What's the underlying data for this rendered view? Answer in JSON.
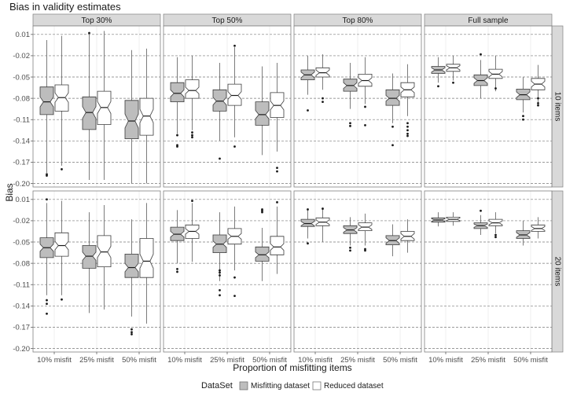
{
  "chart_data": {
    "type": "boxplot",
    "title": "Bias in validity estimates",
    "xlabel": "Proportion of misfitting items",
    "ylabel": "Bias",
    "categories": [
      "10% misfit",
      "25% misfit",
      "50% misfit"
    ],
    "columns": [
      "Top 30%",
      "Top 50%",
      "Top 80%",
      "Full sample"
    ],
    "rows": [
      "10 items",
      "20 items"
    ],
    "yticks": [
      "0.01",
      "-0.02",
      "-0.05",
      "-0.08",
      "-0.11",
      "-0.14",
      "-0.17",
      "-0.20"
    ],
    "yticks_values": [
      0.01,
      -0.02,
      -0.05,
      -0.08,
      -0.11,
      -0.14,
      -0.17,
      -0.2
    ],
    "ylim": [
      -0.205,
      0.022
    ],
    "grid": true,
    "legend": {
      "title": "DataSet",
      "position": "bottom",
      "entries": [
        {
          "label": "Misfitting dataset",
          "color": "#bdbdbd"
        },
        {
          "label": "Reduced dataset",
          "color": "#ffffff"
        }
      ]
    },
    "colors": {
      "misfitting": "#bdbdbd",
      "reduced": "#ffffff",
      "strip": "#d9d9d9",
      "border": "#7f7f7f"
    },
    "series": [
      {
        "name": "Misfitting dataset",
        "row": 0,
        "col": 0,
        "cat": 0,
        "wlo": -0.185,
        "q1": -0.103,
        "med": -0.085,
        "q3": -0.064,
        "whi": 0.002,
        "outliers": [
          -0.187,
          -0.189
        ]
      },
      {
        "name": "Reduced dataset",
        "row": 0,
        "col": 0,
        "cat": 0,
        "wlo": -0.175,
        "q1": -0.098,
        "med": -0.079,
        "q3": -0.061,
        "whi": 0.008,
        "outliers": [
          -0.18
        ]
      },
      {
        "name": "Misfitting dataset",
        "row": 0,
        "col": 0,
        "cat": 1,
        "wlo": -0.195,
        "q1": -0.124,
        "med": -0.1,
        "q3": -0.078,
        "whi": 0.01,
        "outliers": [
          0.012
        ]
      },
      {
        "name": "Reduced dataset",
        "row": 0,
        "col": 0,
        "cat": 1,
        "wlo": -0.195,
        "q1": -0.117,
        "med": -0.093,
        "q3": -0.07,
        "whi": 0.015,
        "outliers": []
      },
      {
        "name": "Misfitting dataset",
        "row": 0,
        "col": 0,
        "cat": 2,
        "wlo": -0.2,
        "q1": -0.137,
        "med": -0.112,
        "q3": -0.083,
        "whi": -0.012,
        "outliers": []
      },
      {
        "name": "Reduced dataset",
        "row": 0,
        "col": 0,
        "cat": 2,
        "wlo": -0.2,
        "q1": -0.132,
        "med": -0.105,
        "q3": -0.08,
        "whi": -0.01,
        "outliers": []
      },
      {
        "name": "Misfitting dataset",
        "row": 0,
        "col": 1,
        "cat": 0,
        "wlo": -0.13,
        "q1": -0.085,
        "med": -0.073,
        "q3": -0.058,
        "whi": -0.022,
        "outliers": [
          -0.132,
          -0.146,
          -0.148
        ]
      },
      {
        "name": "Reduced dataset",
        "row": 0,
        "col": 1,
        "cat": 0,
        "wlo": -0.125,
        "q1": -0.08,
        "med": -0.069,
        "q3": -0.054,
        "whi": -0.02,
        "outliers": [
          -0.128,
          -0.132,
          -0.135
        ]
      },
      {
        "name": "Misfitting dataset",
        "row": 0,
        "col": 1,
        "cat": 1,
        "wlo": -0.14,
        "q1": -0.098,
        "med": -0.084,
        "q3": -0.068,
        "whi": -0.03,
        "outliers": [
          -0.165
        ]
      },
      {
        "name": "Reduced dataset",
        "row": 0,
        "col": 1,
        "cat": 1,
        "wlo": -0.135,
        "q1": -0.09,
        "med": -0.076,
        "q3": -0.06,
        "whi": -0.008,
        "outliers": [
          -0.006,
          -0.148
        ]
      },
      {
        "name": "Misfitting dataset",
        "row": 0,
        "col": 1,
        "cat": 2,
        "wlo": -0.16,
        "q1": -0.118,
        "med": -0.103,
        "q3": -0.085,
        "whi": -0.035,
        "outliers": []
      },
      {
        "name": "Reduced dataset",
        "row": 0,
        "col": 1,
        "cat": 2,
        "wlo": -0.155,
        "q1": -0.107,
        "med": -0.09,
        "q3": -0.072,
        "whi": -0.03,
        "outliers": [
          -0.178,
          -0.183
        ]
      },
      {
        "name": "Misfitting dataset",
        "row": 0,
        "col": 2,
        "cat": 0,
        "wlo": -0.075,
        "q1": -0.054,
        "med": -0.047,
        "q3": -0.04,
        "whi": -0.02,
        "outliers": [
          -0.097
        ]
      },
      {
        "name": "Reduced dataset",
        "row": 0,
        "col": 2,
        "cat": 0,
        "wlo": -0.068,
        "q1": -0.05,
        "med": -0.044,
        "q3": -0.037,
        "whi": -0.018,
        "outliers": [
          -0.08,
          -0.085
        ]
      },
      {
        "name": "Misfitting dataset",
        "row": 0,
        "col": 2,
        "cat": 1,
        "wlo": -0.095,
        "q1": -0.07,
        "med": -0.062,
        "q3": -0.053,
        "whi": -0.03,
        "outliers": [
          -0.115,
          -0.119
        ]
      },
      {
        "name": "Reduced dataset",
        "row": 0,
        "col": 2,
        "cat": 1,
        "wlo": -0.088,
        "q1": -0.063,
        "med": -0.055,
        "q3": -0.046,
        "whi": -0.022,
        "outliers": [
          -0.092,
          -0.118
        ]
      },
      {
        "name": "Misfitting dataset",
        "row": 0,
        "col": 2,
        "cat": 2,
        "wlo": -0.115,
        "q1": -0.09,
        "med": -0.08,
        "q3": -0.068,
        "whi": -0.045,
        "outliers": [
          -0.146,
          -0.12
        ]
      },
      {
        "name": "Reduced dataset",
        "row": 0,
        "col": 2,
        "cat": 2,
        "wlo": -0.105,
        "q1": -0.078,
        "med": -0.068,
        "q3": -0.058,
        "whi": -0.032,
        "outliers": [
          -0.115,
          -0.12,
          -0.125,
          -0.13,
          -0.133
        ]
      },
      {
        "name": "Misfitting dataset",
        "row": 0,
        "col": 3,
        "cat": 0,
        "wlo": -0.058,
        "q1": -0.045,
        "med": -0.04,
        "q3": -0.035,
        "whi": -0.022,
        "outliers": [
          -0.063
        ]
      },
      {
        "name": "Reduced dataset",
        "row": 0,
        "col": 3,
        "cat": 0,
        "wlo": -0.055,
        "q1": -0.042,
        "med": -0.037,
        "q3": -0.032,
        "whi": -0.02,
        "outliers": [
          -0.058
        ]
      },
      {
        "name": "Misfitting dataset",
        "row": 0,
        "col": 3,
        "cat": 1,
        "wlo": -0.08,
        "q1": -0.062,
        "med": -0.055,
        "q3": -0.047,
        "whi": -0.026,
        "outliers": [
          -0.018
        ]
      },
      {
        "name": "Reduced dataset",
        "row": 0,
        "col": 3,
        "cat": 1,
        "wlo": -0.07,
        "q1": -0.052,
        "med": -0.046,
        "q3": -0.039,
        "whi": -0.02,
        "outliers": [
          -0.066
        ]
      },
      {
        "name": "Misfitting dataset",
        "row": 0,
        "col": 3,
        "cat": 2,
        "wlo": -0.1,
        "q1": -0.082,
        "med": -0.075,
        "q3": -0.067,
        "whi": -0.05,
        "outliers": [
          -0.105,
          -0.11
        ]
      },
      {
        "name": "Reduced dataset",
        "row": 0,
        "col": 3,
        "cat": 2,
        "wlo": -0.088,
        "q1": -0.068,
        "med": -0.06,
        "q3": -0.052,
        "whi": -0.033,
        "outliers": [
          -0.08,
          -0.087,
          -0.09
        ]
      },
      {
        "name": "Misfitting dataset",
        "row": 1,
        "col": 0,
        "cat": 0,
        "wlo": -0.125,
        "q1": -0.072,
        "med": -0.058,
        "q3": -0.044,
        "whi": 0.005,
        "outliers": [
          0.01,
          -0.132,
          -0.137,
          -0.151
        ]
      },
      {
        "name": "Reduced dataset",
        "row": 1,
        "col": 0,
        "cat": 0,
        "wlo": -0.125,
        "q1": -0.07,
        "med": -0.055,
        "q3": -0.037,
        "whi": 0.008,
        "outliers": [
          -0.131
        ]
      },
      {
        "name": "Misfitting dataset",
        "row": 1,
        "col": 0,
        "cat": 1,
        "wlo": -0.15,
        "q1": -0.087,
        "med": -0.07,
        "q3": -0.055,
        "whi": -0.008,
        "outliers": []
      },
      {
        "name": "Reduced dataset",
        "row": 1,
        "col": 0,
        "cat": 1,
        "wlo": -0.145,
        "q1": -0.085,
        "med": -0.064,
        "q3": -0.041,
        "whi": 0.002,
        "outliers": []
      },
      {
        "name": "Misfitting dataset",
        "row": 1,
        "col": 0,
        "cat": 2,
        "wlo": -0.155,
        "q1": -0.1,
        "med": -0.086,
        "q3": -0.067,
        "whi": -0.018,
        "outliers": [
          -0.173,
          -0.177,
          -0.18
        ]
      },
      {
        "name": "Reduced dataset",
        "row": 1,
        "col": 0,
        "cat": 2,
        "wlo": -0.165,
        "q1": -0.1,
        "med": -0.077,
        "q3": -0.045,
        "whi": 0.005,
        "outliers": []
      },
      {
        "name": "Misfitting dataset",
        "row": 1,
        "col": 1,
        "cat": 0,
        "wlo": -0.08,
        "q1": -0.048,
        "med": -0.039,
        "q3": -0.029,
        "whi": -0.005,
        "outliers": [
          -0.088,
          -0.092
        ]
      },
      {
        "name": "Reduced dataset",
        "row": 1,
        "col": 1,
        "cat": 0,
        "wlo": -0.078,
        "q1": -0.045,
        "med": -0.035,
        "q3": -0.026,
        "whi": 0.005,
        "outliers": [
          0.008
        ]
      },
      {
        "name": "Misfitting dataset",
        "row": 1,
        "col": 1,
        "cat": 1,
        "wlo": -0.105,
        "q1": -0.065,
        "med": -0.053,
        "q3": -0.04,
        "whi": -0.008,
        "outliers": [
          -0.09,
          -0.093,
          -0.097,
          -0.118,
          -0.125
        ]
      },
      {
        "name": "Reduced dataset",
        "row": 1,
        "col": 1,
        "cat": 1,
        "wlo": -0.09,
        "q1": -0.053,
        "med": -0.042,
        "q3": -0.031,
        "whi": 0,
        "outliers": [
          -0.1,
          -0.126
        ]
      },
      {
        "name": "Misfitting dataset",
        "row": 1,
        "col": 1,
        "cat": 2,
        "wlo": -0.105,
        "q1": -0.077,
        "med": -0.068,
        "q3": -0.057,
        "whi": -0.03,
        "outliers": [
          -0.004,
          -0.006,
          -0.008
        ]
      },
      {
        "name": "Reduced dataset",
        "row": 1,
        "col": 1,
        "cat": 2,
        "wlo": -0.095,
        "q1": -0.068,
        "med": -0.057,
        "q3": -0.042,
        "whi": 0,
        "outliers": [
          0.006
        ]
      },
      {
        "name": "Misfitting dataset",
        "row": 1,
        "col": 2,
        "cat": 0,
        "wlo": -0.045,
        "q1": -0.028,
        "med": -0.024,
        "q3": -0.018,
        "whi": -0.005,
        "outliers": [
          -0.004,
          -0.052
        ]
      },
      {
        "name": "Reduced dataset",
        "row": 1,
        "col": 2,
        "cat": 0,
        "wlo": -0.05,
        "q1": -0.027,
        "med": -0.022,
        "q3": -0.016,
        "whi": -0.002,
        "outliers": [
          -0.003
        ]
      },
      {
        "name": "Misfitting dataset",
        "row": 1,
        "col": 2,
        "cat": 1,
        "wlo": -0.055,
        "q1": -0.038,
        "med": -0.033,
        "q3": -0.027,
        "whi": -0.015,
        "outliers": [
          -0.058,
          -0.062
        ]
      },
      {
        "name": "Reduced dataset",
        "row": 1,
        "col": 2,
        "cat": 1,
        "wlo": -0.055,
        "q1": -0.034,
        "med": -0.029,
        "q3": -0.023,
        "whi": -0.01,
        "outliers": [
          -0.06,
          -0.062
        ]
      },
      {
        "name": "Misfitting dataset",
        "row": 1,
        "col": 2,
        "cat": 2,
        "wlo": -0.07,
        "q1": -0.054,
        "med": -0.048,
        "q3": -0.041,
        "whi": -0.025,
        "outliers": []
      },
      {
        "name": "Reduced dataset",
        "row": 1,
        "col": 2,
        "cat": 2,
        "wlo": -0.065,
        "q1": -0.048,
        "med": -0.042,
        "q3": -0.035,
        "whi": -0.018,
        "outliers": []
      },
      {
        "name": "Misfitting dataset",
        "row": 1,
        "col": 3,
        "cat": 0,
        "wlo": -0.028,
        "q1": -0.022,
        "med": -0.019,
        "q3": -0.016,
        "whi": -0.008,
        "outliers": []
      },
      {
        "name": "Reduced dataset",
        "row": 1,
        "col": 3,
        "cat": 0,
        "wlo": -0.027,
        "q1": -0.021,
        "med": -0.018,
        "q3": -0.015,
        "whi": -0.008,
        "outliers": []
      },
      {
        "name": "Misfitting dataset",
        "row": 1,
        "col": 3,
        "cat": 1,
        "wlo": -0.04,
        "q1": -0.031,
        "med": -0.027,
        "q3": -0.023,
        "whi": -0.012,
        "outliers": [
          -0.006
        ]
      },
      {
        "name": "Reduced dataset",
        "row": 1,
        "col": 3,
        "cat": 1,
        "wlo": -0.038,
        "q1": -0.027,
        "med": -0.023,
        "q3": -0.018,
        "whi": -0.008,
        "outliers": [
          -0.04,
          -0.043
        ]
      },
      {
        "name": "Misfitting dataset",
        "row": 1,
        "col": 3,
        "cat": 2,
        "wlo": -0.055,
        "q1": -0.045,
        "med": -0.04,
        "q3": -0.034,
        "whi": -0.02,
        "outliers": []
      },
      {
        "name": "Reduced dataset",
        "row": 1,
        "col": 3,
        "cat": 2,
        "wlo": -0.045,
        "q1": -0.035,
        "med": -0.031,
        "q3": -0.026,
        "whi": -0.015,
        "outliers": []
      }
    ]
  }
}
